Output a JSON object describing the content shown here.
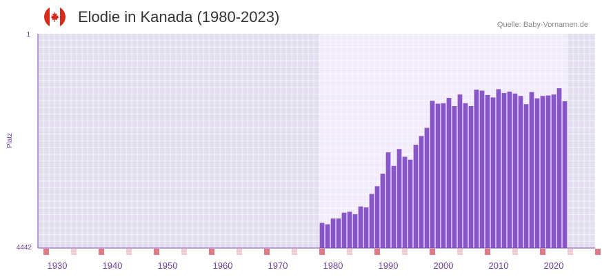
{
  "header": {
    "title": "Elodie in Kanada (1980-2023)",
    "source": "Quelle: Baby-Vornamen.de"
  },
  "colors": {
    "bar": "#8a55c7",
    "plot_background": "#e4dff0",
    "highlight_background": "#f1ecfa",
    "tick_text": "#6a3fa0",
    "decade_marker": "#e07a86",
    "half_decade_marker": "#f3cdd4",
    "flag_red": "#d52b1e"
  },
  "chart_data": {
    "type": "bar",
    "title": "Elodie in Kanada (1980-2023)",
    "ylabel": "Platz",
    "xlabel": "",
    "y_inverted": true,
    "ylim": [
      1,
      4442
    ],
    "y_ticks": [
      "1",
      "4442"
    ],
    "xlim": [
      1927,
      2028
    ],
    "highlight_range": [
      1978,
      2022
    ],
    "x_ticks": [
      "1930",
      "1940",
      "1950",
      "1960",
      "1970",
      "1980",
      "1990",
      "2000",
      "2010",
      "2020"
    ],
    "x": [
      1978,
      1979,
      1980,
      1981,
      1982,
      1983,
      1984,
      1985,
      1986,
      1987,
      1988,
      1989,
      1990,
      1991,
      1992,
      1993,
      1994,
      1995,
      1996,
      1997,
      1998,
      1999,
      2000,
      2001,
      2002,
      2003,
      2004,
      2005,
      2006,
      2007,
      2008,
      2009,
      2010,
      2011,
      2012,
      2013,
      2014,
      2015,
      2016,
      2017,
      2018,
      2019,
      2020,
      2021,
      2022
    ],
    "values": [
      3920,
      3950,
      3830,
      3830,
      3710,
      3690,
      3740,
      3580,
      3600,
      3320,
      3160,
      2900,
      2460,
      2740,
      2390,
      2550,
      2610,
      2300,
      2120,
      1950,
      1390,
      1450,
      1440,
      1330,
      1500,
      1260,
      1440,
      1500,
      1160,
      1180,
      1270,
      1320,
      1150,
      1230,
      1200,
      1240,
      1290,
      1460,
      1210,
      1340,
      1290,
      1280,
      1260,
      1130,
      1400
    ]
  }
}
